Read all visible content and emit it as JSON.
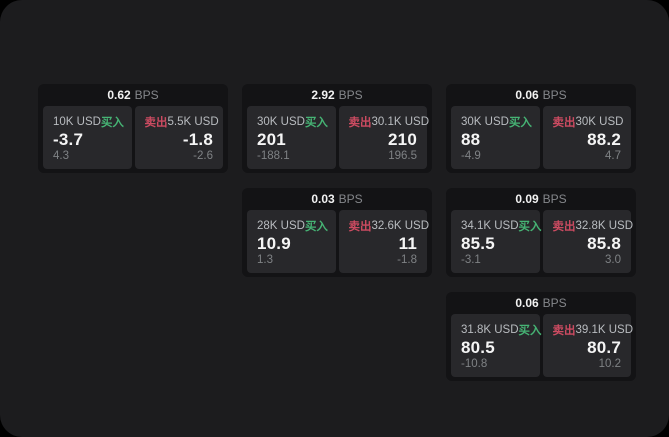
{
  "labels": {
    "buy": "买入",
    "sell": "卖出",
    "bps_unit": "BPS"
  },
  "colors": {
    "buy_green": "#46b374",
    "sell_red": "#cc4b61",
    "page_surface": "#1c1c1e",
    "card_background": "#131315",
    "panel_background": "#28282b"
  },
  "cards": [
    {
      "bps": "0.62",
      "buy": {
        "amount": "10K USD",
        "price": "-3.7",
        "delta": "4.3"
      },
      "sell": {
        "amount": "5.5K USD",
        "price": "-1.8",
        "delta": "-2.6"
      }
    },
    {
      "bps": "2.92",
      "buy": {
        "amount": "30K USD",
        "price": "201",
        "delta": "-188.1"
      },
      "sell": {
        "amount": "30.1K USD",
        "price": "210",
        "delta": "196.5"
      }
    },
    {
      "bps": "0.06",
      "buy": {
        "amount": "30K USD",
        "price": "88",
        "delta": "-4.9"
      },
      "sell": {
        "amount": "30K USD",
        "price": "88.2",
        "delta": "4.7"
      }
    },
    {
      "bps": "0.03",
      "buy": {
        "amount": "28K USD",
        "price": "10.9",
        "delta": "1.3"
      },
      "sell": {
        "amount": "32.6K USD",
        "price": "11",
        "delta": "-1.8"
      }
    },
    {
      "bps": "0.09",
      "buy": {
        "amount": "34.1K USD",
        "price": "85.5",
        "delta": "-3.1"
      },
      "sell": {
        "amount": "32.8K USD",
        "price": "85.8",
        "delta": "3.0"
      }
    },
    {
      "bps": "0.06",
      "buy": {
        "amount": "31.8K USD",
        "price": "80.5",
        "delta": "-10.8"
      },
      "sell": {
        "amount": "39.1K USD",
        "price": "80.7",
        "delta": "10.2"
      }
    }
  ]
}
